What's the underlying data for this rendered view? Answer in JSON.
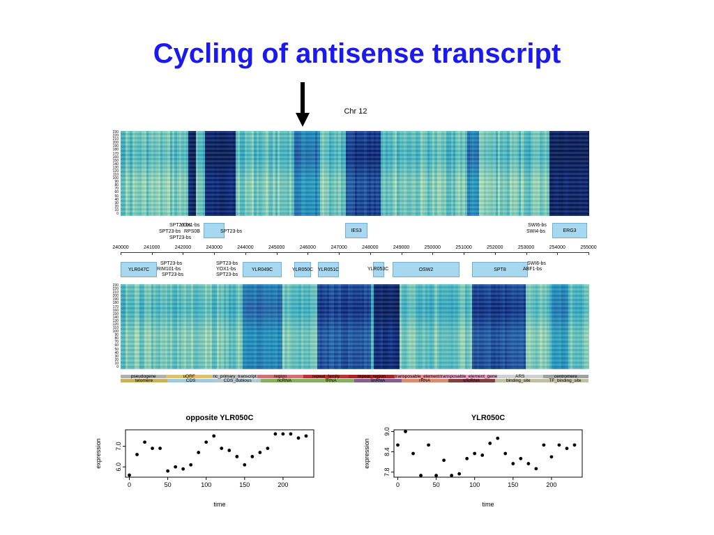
{
  "slide": {
    "title": "Cycling of antisense transcript"
  },
  "chromosome_label": "Chr 12",
  "heatmap": {
    "y_ticks": [
      "230",
      "220",
      "210",
      "200",
      "190",
      "180",
      "170",
      "160",
      "150",
      "140",
      "130",
      "120",
      "110",
      "100",
      "90",
      "80",
      "70",
      "60",
      "50",
      "40",
      "30",
      "20",
      "10",
      "0"
    ]
  },
  "genome_axis": {
    "ticks": [
      "240000",
      "241000",
      "242000",
      "243000",
      "244000",
      "245000",
      "246000",
      "247000",
      "248000",
      "249000",
      "250000",
      "251000",
      "252000",
      "253000",
      "254000",
      "255000"
    ]
  },
  "top_strand_labels": [
    {
      "text": "SPT23-bs"
    },
    {
      "text": "SPT23-bs"
    },
    {
      "text": "SPT23-bs"
    },
    {
      "text": "YOX1-bs"
    },
    {
      "text": "RPS0B"
    },
    {
      "text": "SPT23-bs"
    },
    {
      "text": "IES3"
    },
    {
      "text": "SWI6-bs"
    },
    {
      "text": "SWI4-bs"
    },
    {
      "text": "ERG3"
    }
  ],
  "bottom_strand_labels": [
    {
      "text": "YLR047C"
    },
    {
      "text": "SPT23-bs"
    },
    {
      "text": "RIM101-bs"
    },
    {
      "text": "SPT23-bs"
    },
    {
      "text": "SPT23-bs"
    },
    {
      "text": "YOX1-bs"
    },
    {
      "text": "SPT23-bs"
    },
    {
      "text": "YLR049C"
    },
    {
      "text": "YLR050C"
    },
    {
      "text": "YLR051C"
    },
    {
      "text": "YLR053C"
    },
    {
      "text": "OSW2"
    },
    {
      "text": "SPT8"
    },
    {
      "text": "SWI6-bs"
    },
    {
      "text": "ABF1-bs"
    }
  ],
  "legend": {
    "row1": [
      "pseudogene",
      "uORF",
      "nc_primary_transcript",
      "region",
      "repeat_family",
      "repeat_region",
      "transposable_element",
      "transposable_element_gene",
      "ARS",
      "centromere"
    ],
    "row2": [
      "telomere",
      "CDS",
      "CDS_dubious",
      "ncRNA",
      "tRNA",
      "snRNA",
      "rRNA",
      "snoRNA",
      "binding_site",
      "TF_binding_site"
    ],
    "colors1": [
      "#b0b0b0",
      "#e0c070",
      "#c0c0c0",
      "#d07070",
      "#c03030",
      "#b02020",
      "#e09090",
      "#e0a0c0",
      "#d0d0d0",
      "#a0a0a0"
    ],
    "colors2": [
      "#c8b060",
      "#a0c8e0",
      "#b0c8d0",
      "#80b060",
      "#80b060",
      "#806090",
      "#d09070",
      "#804040",
      "#c0c0a0",
      "#c0c0a0"
    ]
  },
  "chart_data": [
    {
      "type": "scatter",
      "title": "opposite YLR050C",
      "xlabel": "time",
      "ylabel": "expression",
      "xlim": [
        -5,
        240
      ],
      "ylim": [
        5.5,
        7.8
      ],
      "xticks": [
        0,
        50,
        100,
        150,
        200
      ],
      "yticks": [
        6.0,
        7.0
      ],
      "x": [
        0,
        10,
        20,
        30,
        40,
        50,
        60,
        70,
        80,
        90,
        100,
        110,
        120,
        130,
        140,
        150,
        160,
        170,
        180,
        190,
        200,
        210,
        220,
        230
      ],
      "y": [
        5.6,
        6.6,
        7.2,
        6.9,
        6.9,
        5.8,
        6.0,
        5.9,
        6.1,
        6.7,
        7.2,
        7.5,
        6.9,
        6.8,
        6.5,
        6.1,
        6.5,
        6.7,
        6.9,
        7.6,
        7.6,
        7.6,
        7.4,
        7.5
      ]
    },
    {
      "type": "scatter",
      "title": "YLR050C",
      "xlabel": "time",
      "ylabel": "expression",
      "xlim": [
        -5,
        240
      ],
      "ylim": [
        7.65,
        9.05
      ],
      "xticks": [
        0,
        50,
        100,
        150,
        200
      ],
      "yticks": [
        7.8,
        8.4,
        9.0
      ],
      "x": [
        0,
        10,
        20,
        30,
        40,
        50,
        60,
        70,
        80,
        90,
        100,
        110,
        120,
        130,
        140,
        150,
        160,
        170,
        180,
        190,
        200,
        210,
        220,
        230
      ],
      "y": [
        8.6,
        9.0,
        8.35,
        7.7,
        8.6,
        7.7,
        8.15,
        7.7,
        7.75,
        8.2,
        8.35,
        8.3,
        8.65,
        8.8,
        8.35,
        8.05,
        8.2,
        8.05,
        7.9,
        8.6,
        8.25,
        8.6,
        8.5,
        8.6
      ]
    }
  ]
}
